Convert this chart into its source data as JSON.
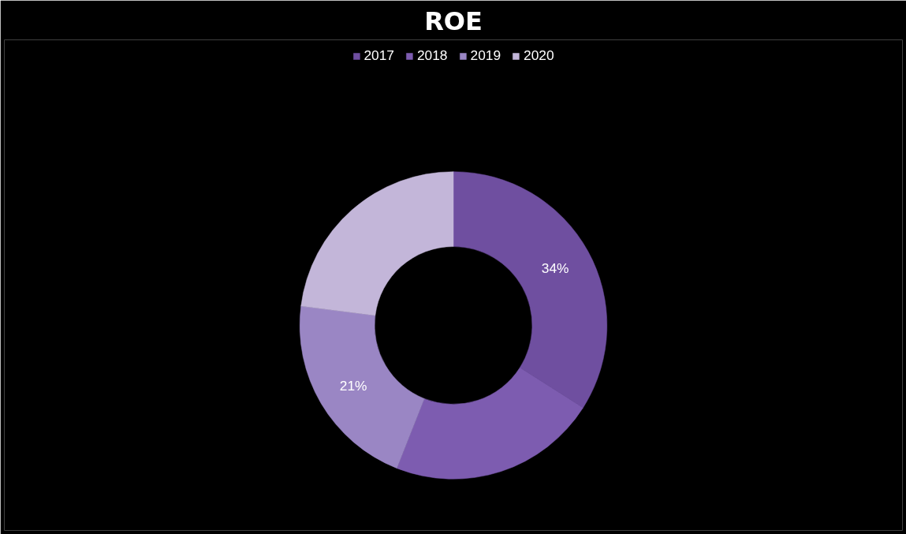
{
  "chart_data": {
    "type": "donut",
    "title": "ROE",
    "categories": [
      "2017",
      "2018",
      "2019",
      "2020"
    ],
    "values": [
      34,
      22,
      21,
      23
    ],
    "colors": [
      "#6f4fa0",
      "#7d5cb0",
      "#9a86c4",
      "#c3b6d9"
    ],
    "value_labels": [
      "34%",
      null,
      "21%",
      null
    ],
    "legend": "top"
  }
}
